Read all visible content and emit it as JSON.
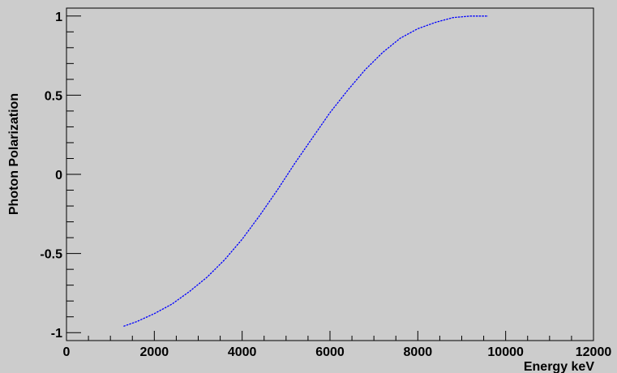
{
  "chart_data": {
    "type": "line",
    "title": "",
    "xlabel": "Energy keV",
    "ylabel": "Photon Polarization",
    "xlim": [
      0,
      12000
    ],
    "ylim": [
      -1.05,
      1.05
    ],
    "x_ticks": [
      0,
      2000,
      4000,
      6000,
      8000,
      10000,
      12000
    ],
    "x_tick_labels": [
      "0",
      "2000",
      "4000",
      "6000",
      "8000",
      "10000",
      "12000"
    ],
    "y_ticks": [
      -1,
      -0.5,
      0,
      0.5,
      1
    ],
    "y_tick_labels": [
      "-1",
      "-0.5",
      "0",
      "0.5",
      "1"
    ],
    "grid": false,
    "line_color": "#0000ff",
    "background_color": "#cccccc",
    "series": [
      {
        "x": [
          1300,
          1600,
          2000,
          2400,
          2800,
          3200,
          3600,
          4000,
          4400,
          4800,
          5200,
          5600,
          6000,
          6400,
          6800,
          7200,
          7600,
          8000,
          8400,
          8800,
          9200,
          9600
        ],
        "y": [
          -0.96,
          -0.93,
          -0.88,
          -0.82,
          -0.74,
          -0.65,
          -0.54,
          -0.41,
          -0.26,
          -0.1,
          0.07,
          0.23,
          0.39,
          0.53,
          0.66,
          0.77,
          0.86,
          0.92,
          0.96,
          0.99,
          1.0,
          1.0
        ]
      }
    ]
  }
}
